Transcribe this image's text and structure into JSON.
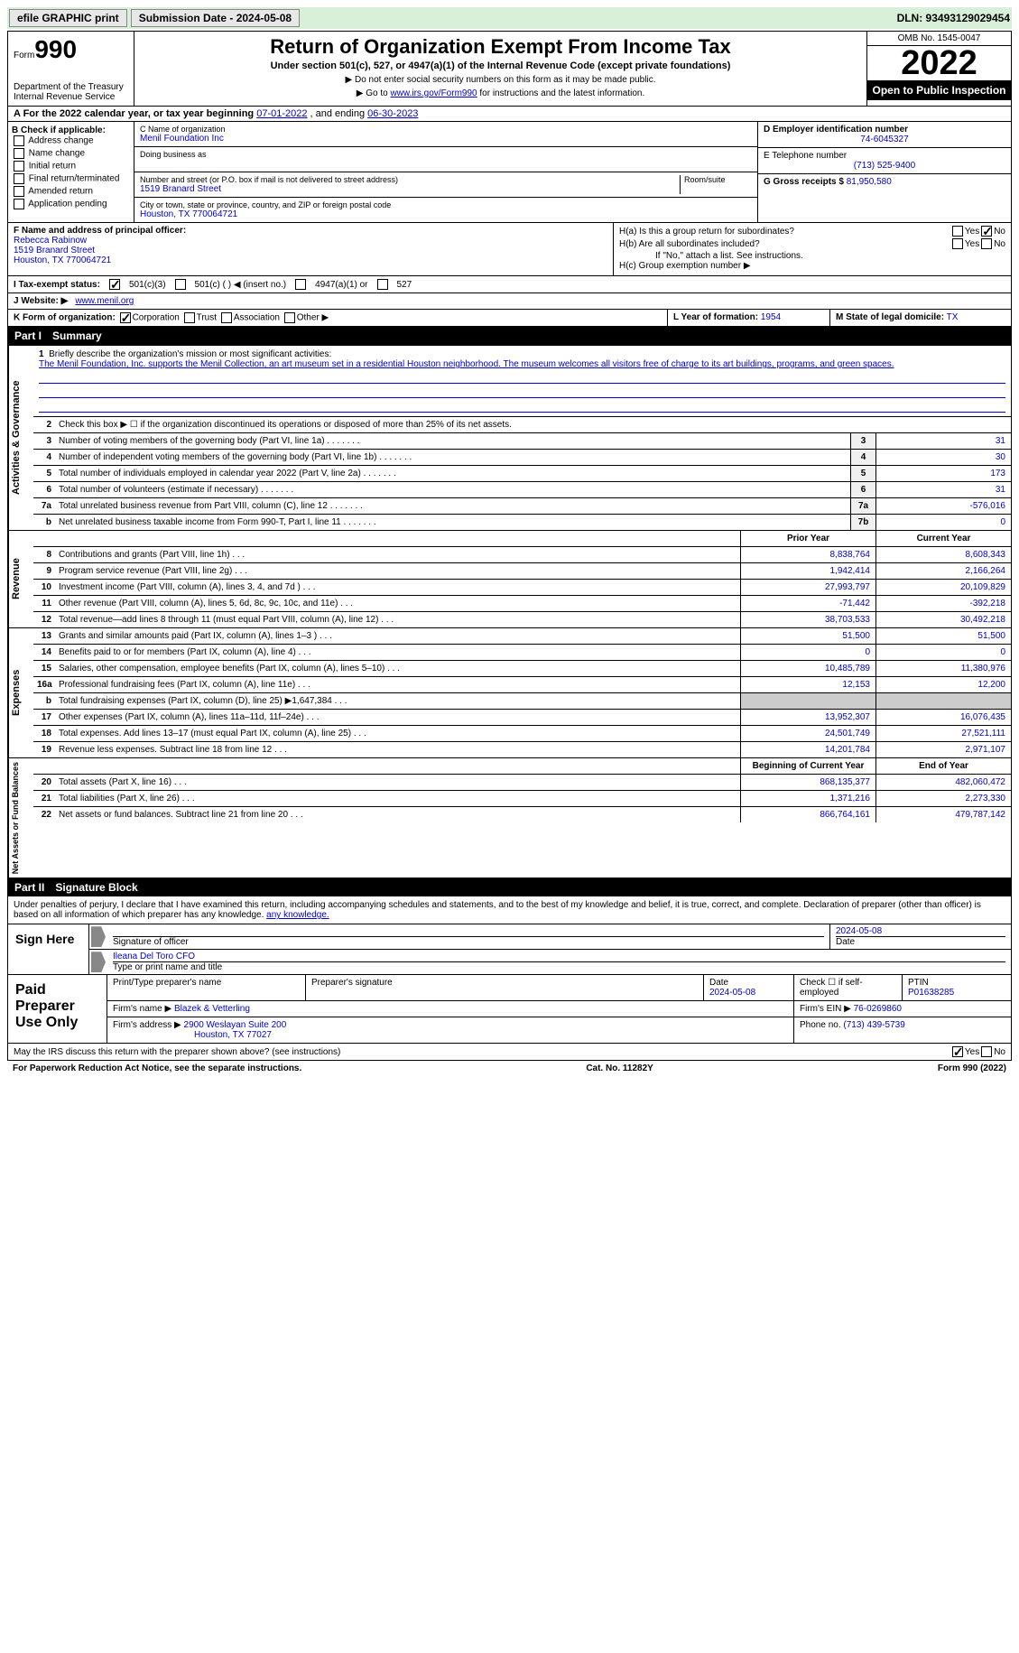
{
  "topbar": {
    "efile_label": "efile GRAPHIC print",
    "submission_label": "Submission Date - 2024-05-08",
    "dln_label": "DLN: 93493129029454"
  },
  "header": {
    "form_word": "Form",
    "form_number": "990",
    "dept": "Department of the Treasury",
    "irs": "Internal Revenue Service",
    "title": "Return of Organization Exempt From Income Tax",
    "subtitle": "Under section 501(c), 527, or 4947(a)(1) of the Internal Revenue Code (except private foundations)",
    "note1": "▶ Do not enter social security numbers on this form as it may be made public.",
    "note2_prefix": "▶ Go to ",
    "note2_link": "www.irs.gov/Form990",
    "note2_suffix": " for instructions and the latest information.",
    "omb": "OMB No. 1545-0047",
    "year": "2022",
    "inspection": "Open to Public Inspection"
  },
  "section_a": {
    "prefix": "A For the 2022 calendar year, or tax year beginning ",
    "begin": "07-01-2022",
    "mid": " , and ending ",
    "end": "06-30-2023"
  },
  "section_b": {
    "title": "B Check if applicable:",
    "items": [
      "Address change",
      "Name change",
      "Initial return",
      "Final return/terminated",
      "Amended return",
      "Application pending"
    ]
  },
  "section_c": {
    "name_label": "C Name of organization",
    "name": "Menil Foundation Inc",
    "dba_label": "Doing business as",
    "street_label": "Number and street (or P.O. box if mail is not delivered to street address)",
    "room_label": "Room/suite",
    "street": "1519 Branard Street",
    "city_label": "City or town, state or province, country, and ZIP or foreign postal code",
    "city": "Houston, TX  770064721"
  },
  "section_d": {
    "label": "D Employer identification number",
    "value": "74-6045327"
  },
  "section_e": {
    "label": "E Telephone number",
    "value": "(713) 525-9400"
  },
  "section_g": {
    "label": "G Gross receipts $",
    "value": "81,950,580"
  },
  "section_f": {
    "label": "F Name and address of principal officer:",
    "name": "Rebecca Rabinow",
    "street": "1519 Branard Street",
    "city": "Houston, TX  770064721"
  },
  "section_h": {
    "ha": "H(a)  Is this a group return for subordinates?",
    "hb": "H(b)  Are all subordinates included?",
    "hb_note": "If \"No,\" attach a list. See instructions.",
    "hc": "H(c)  Group exemption number ▶",
    "yes": "Yes",
    "no": "No"
  },
  "section_i": {
    "label": "I  Tax-exempt status:",
    "opt1": "501(c)(3)",
    "opt2": "501(c) (  ) ◀ (insert no.)",
    "opt3": "4947(a)(1) or",
    "opt4": "527"
  },
  "section_j": {
    "label": "J  Website: ▶",
    "value": "www.menil.org"
  },
  "section_k": {
    "label": "K Form of organization:",
    "corp": "Corporation",
    "trust": "Trust",
    "assoc": "Association",
    "other": "Other ▶"
  },
  "section_l": {
    "label": "L Year of formation:",
    "value": "1954"
  },
  "section_m": {
    "label": "M State of legal domicile:",
    "value": "TX"
  },
  "part1": {
    "header_num": "Part I",
    "header_title": "Summary",
    "vert_activities": "Activities & Governance",
    "vert_revenue": "Revenue",
    "vert_expenses": "Expenses",
    "vert_netassets": "Net Assets or Fund Balances",
    "line1_label": "Briefly describe the organization's mission or most significant activities:",
    "line1_mission": "The Menil Foundation, Inc. supports the Menil Collection, an art museum set in a residential Houston neighborhood. The museum welcomes all visitors free of charge to its art buildings, programs, and green spaces.",
    "line2": "Check this box ▶ ☐ if the organization discontinued its operations or disposed of more than 25% of its net assets.",
    "prior_year_hdr": "Prior Year",
    "current_year_hdr": "Current Year",
    "begin_year_hdr": "Beginning of Current Year",
    "end_year_hdr": "End of Year",
    "rows_governance": [
      {
        "n": "3",
        "desc": "Number of voting members of the governing body (Part VI, line 1a)",
        "box": "3",
        "val": "31"
      },
      {
        "n": "4",
        "desc": "Number of independent voting members of the governing body (Part VI, line 1b)",
        "box": "4",
        "val": "30"
      },
      {
        "n": "5",
        "desc": "Total number of individuals employed in calendar year 2022 (Part V, line 2a)",
        "box": "5",
        "val": "173"
      },
      {
        "n": "6",
        "desc": "Total number of volunteers (estimate if necessary)",
        "box": "6",
        "val": "31"
      },
      {
        "n": "7a",
        "desc": "Total unrelated business revenue from Part VIII, column (C), line 12",
        "box": "7a",
        "val": "-576,016"
      },
      {
        "n": "b",
        "desc": "Net unrelated business taxable income from Form 990-T, Part I, line 11",
        "box": "7b",
        "val": "0"
      }
    ],
    "rows_revenue": [
      {
        "n": "8",
        "desc": "Contributions and grants (Part VIII, line 1h)",
        "prior": "8,838,764",
        "curr": "8,608,343"
      },
      {
        "n": "9",
        "desc": "Program service revenue (Part VIII, line 2g)",
        "prior": "1,942,414",
        "curr": "2,166,264"
      },
      {
        "n": "10",
        "desc": "Investment income (Part VIII, column (A), lines 3, 4, and 7d )",
        "prior": "27,993,797",
        "curr": "20,109,829"
      },
      {
        "n": "11",
        "desc": "Other revenue (Part VIII, column (A), lines 5, 6d, 8c, 9c, 10c, and 11e)",
        "prior": "-71,442",
        "curr": "-392,218"
      },
      {
        "n": "12",
        "desc": "Total revenue—add lines 8 through 11 (must equal Part VIII, column (A), line 12)",
        "prior": "38,703,533",
        "curr": "30,492,218"
      }
    ],
    "rows_expenses": [
      {
        "n": "13",
        "desc": "Grants and similar amounts paid (Part IX, column (A), lines 1–3 )",
        "prior": "51,500",
        "curr": "51,500"
      },
      {
        "n": "14",
        "desc": "Benefits paid to or for members (Part IX, column (A), line 4)",
        "prior": "0",
        "curr": "0"
      },
      {
        "n": "15",
        "desc": "Salaries, other compensation, employee benefits (Part IX, column (A), lines 5–10)",
        "prior": "10,485,789",
        "curr": "11,380,976"
      },
      {
        "n": "16a",
        "desc": "Professional fundraising fees (Part IX, column (A), line 11e)",
        "prior": "12,153",
        "curr": "12,200"
      },
      {
        "n": "b",
        "desc": "Total fundraising expenses (Part IX, column (D), line 25) ▶1,647,384",
        "prior": "",
        "curr": "",
        "shaded": true
      },
      {
        "n": "17",
        "desc": "Other expenses (Part IX, column (A), lines 11a–11d, 11f–24e)",
        "prior": "13,952,307",
        "curr": "16,076,435"
      },
      {
        "n": "18",
        "desc": "Total expenses. Add lines 13–17 (must equal Part IX, column (A), line 25)",
        "prior": "24,501,749",
        "curr": "27,521,111"
      },
      {
        "n": "19",
        "desc": "Revenue less expenses. Subtract line 18 from line 12",
        "prior": "14,201,784",
        "curr": "2,971,107"
      }
    ],
    "rows_netassets": [
      {
        "n": "20",
        "desc": "Total assets (Part X, line 16)",
        "prior": "868,135,377",
        "curr": "482,060,472"
      },
      {
        "n": "21",
        "desc": "Total liabilities (Part X, line 26)",
        "prior": "1,371,216",
        "curr": "2,273,330"
      },
      {
        "n": "22",
        "desc": "Net assets or fund balances. Subtract line 21 from line 20",
        "prior": "866,764,161",
        "curr": "479,787,142"
      }
    ]
  },
  "part2": {
    "header_num": "Part II",
    "header_title": "Signature Block",
    "declaration": "Under penalties of perjury, I declare that I have examined this return, including accompanying schedules and statements, and to the best of my knowledge and belief, it is true, correct, and complete. Declaration of preparer (other than officer) is based on all information of which preparer has any knowledge."
  },
  "sign": {
    "label": "Sign Here",
    "sig_label": "Signature of officer",
    "date_label": "Date",
    "date": "2024-05-08",
    "name": "Ileana Del Toro CFO",
    "name_label": "Type or print name and title"
  },
  "preparer": {
    "label": "Paid Preparer Use Only",
    "print_name_label": "Print/Type preparer's name",
    "sig_label": "Preparer's signature",
    "date_label": "Date",
    "date": "2024-05-08",
    "check_label": "Check ☐ if self-employed",
    "ptin_label": "PTIN",
    "ptin": "P01638285",
    "firm_name_label": "Firm's name    ▶",
    "firm_name": "Blazek & Vetterling",
    "firm_ein_label": "Firm's EIN ▶",
    "firm_ein": "76-0269860",
    "firm_addr_label": "Firm's address ▶",
    "firm_addr1": "2900 Weslayan Suite 200",
    "firm_addr2": "Houston, TX  77027",
    "phone_label": "Phone no.",
    "phone": "(713) 439-5739"
  },
  "discuss": {
    "text": "May the IRS discuss this return with the preparer shown above? (see instructions)",
    "yes": "Yes",
    "no": "No"
  },
  "footer": {
    "left": "For Paperwork Reduction Act Notice, see the separate instructions.",
    "mid": "Cat. No. 11282Y",
    "right": "Form 990 (2022)"
  }
}
